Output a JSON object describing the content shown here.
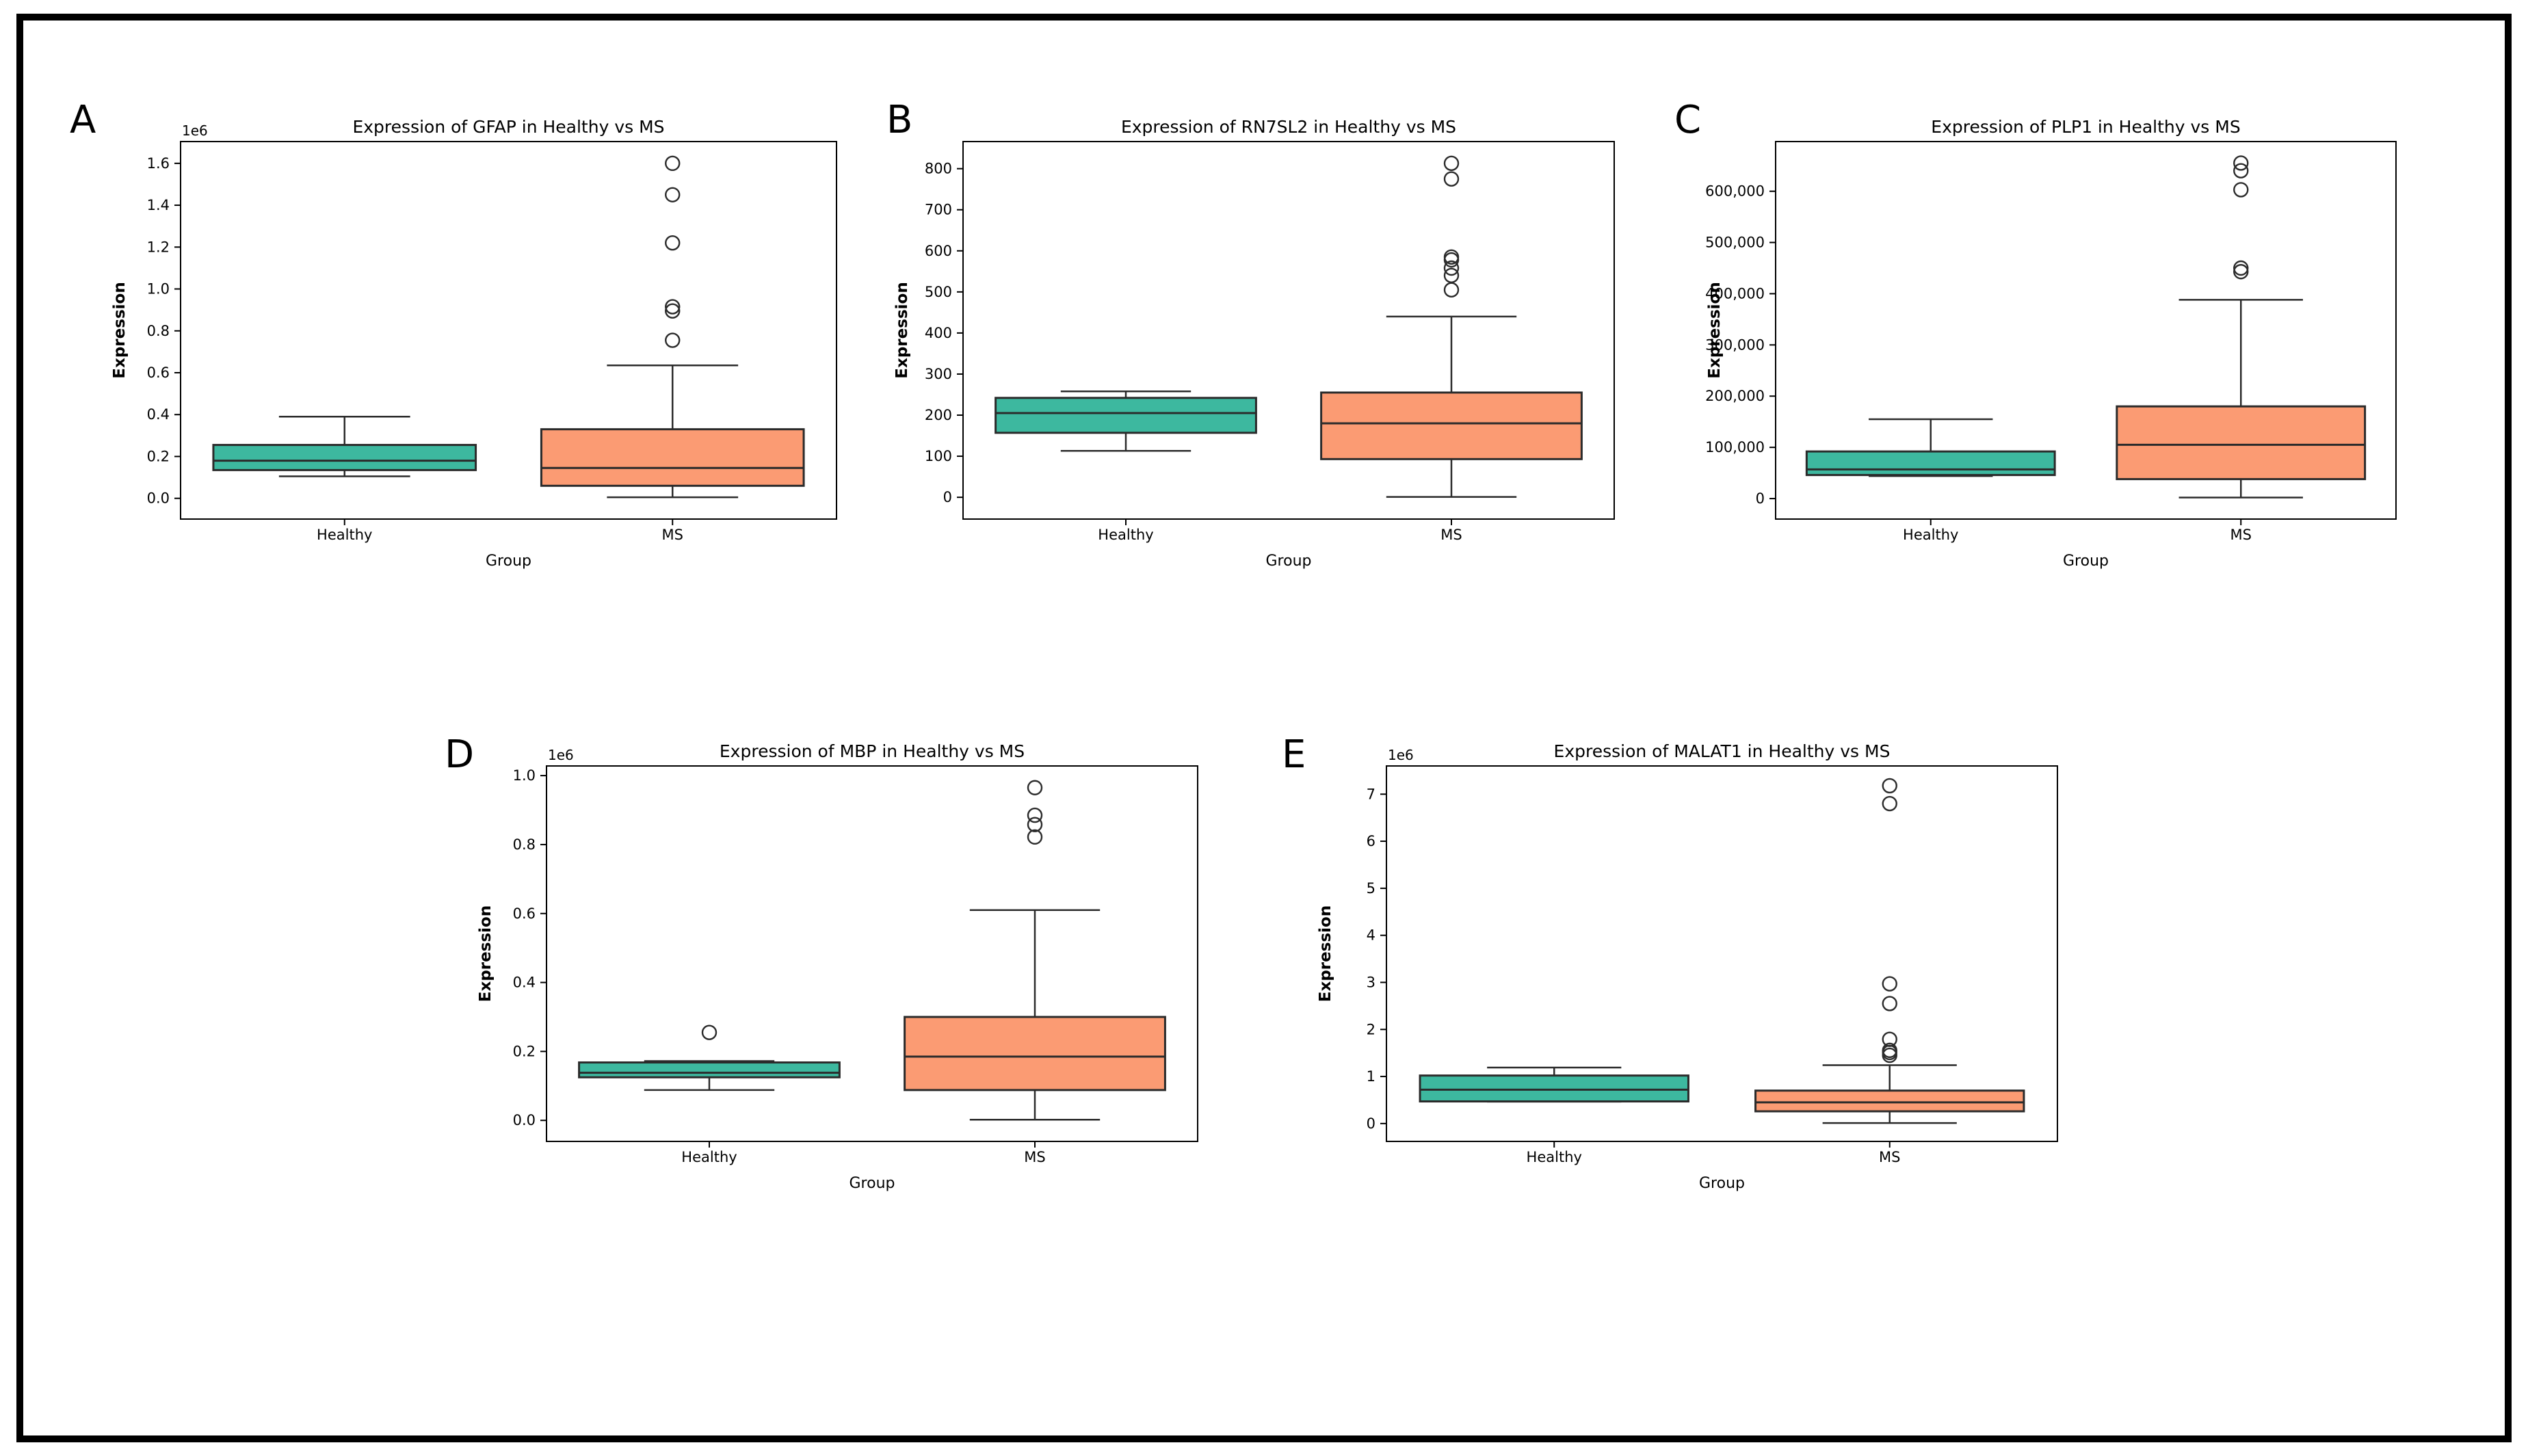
{
  "page": {
    "background": "#ffffff",
    "frame_color": "#000000"
  },
  "panel_labels": [
    "A",
    "B",
    "C",
    "D",
    "E"
  ],
  "colors": {
    "healthy_box": "#3db89f",
    "ms_box": "#fb9b73",
    "box_edge": "#2b2b2b",
    "spine": "#000000"
  },
  "chart_data": [
    {
      "type": "box",
      "panel_label": "A",
      "gene": "GFAP",
      "title": "Expression of GFAP in Healthy vs MS",
      "xlabel": "Group",
      "ylabel": "Expression",
      "y_offset_text": "1e6",
      "categories": [
        "Healthy",
        "MS"
      ],
      "ylim": [
        -99000,
        1704000
      ],
      "yticks": [
        {
          "v": 0,
          "label": "0.0"
        },
        {
          "v": 200000,
          "label": "0.2"
        },
        {
          "v": 400000,
          "label": "0.4"
        },
        {
          "v": 600000,
          "label": "0.6"
        },
        {
          "v": 800000,
          "label": "0.8"
        },
        {
          "v": 1000000,
          "label": "1.0"
        },
        {
          "v": 1200000,
          "label": "1.2"
        },
        {
          "v": 1400000,
          "label": "1.4"
        },
        {
          "v": 1600000,
          "label": "1.6"
        }
      ],
      "series": [
        {
          "name": "Healthy",
          "color": "#3db89f",
          "whislo": 105000,
          "q1": 135000,
          "med": 180000,
          "q3": 255000,
          "whishi": 390000,
          "outliers": []
        },
        {
          "name": "MS",
          "color": "#fb9b73",
          "whislo": 5000,
          "q1": 60000,
          "med": 145000,
          "q3": 330000,
          "whishi": 635000,
          "outliers": [
            755000,
            895000,
            915000,
            1220000,
            1450000,
            1600000
          ]
        }
      ]
    },
    {
      "type": "box",
      "panel_label": "B",
      "gene": "RN7SL2",
      "title": "Expression of RN7SL2 in Healthy vs MS",
      "xlabel": "Group",
      "ylabel": "Expression",
      "y_offset_text": "",
      "categories": [
        "Healthy",
        "MS"
      ],
      "ylim": [
        -53,
        866
      ],
      "yticks": [
        {
          "v": 0,
          "label": "0"
        },
        {
          "v": 100,
          "label": "100"
        },
        {
          "v": 200,
          "label": "200"
        },
        {
          "v": 300,
          "label": "300"
        },
        {
          "v": 400,
          "label": "400"
        },
        {
          "v": 500,
          "label": "500"
        },
        {
          "v": 600,
          "label": "600"
        },
        {
          "v": 700,
          "label": "700"
        },
        {
          "v": 800,
          "label": "800"
        }
      ],
      "series": [
        {
          "name": "Healthy",
          "color": "#3db89f",
          "whislo": 113,
          "q1": 157,
          "med": 205,
          "q3": 242,
          "whishi": 258,
          "outliers": []
        },
        {
          "name": "MS",
          "color": "#fb9b73",
          "whislo": 1,
          "q1": 93,
          "med": 180,
          "q3": 255,
          "whishi": 440,
          "outliers": [
            505,
            540,
            558,
            578,
            585,
            775,
            813
          ]
        }
      ]
    },
    {
      "type": "box",
      "panel_label": "C",
      "gene": "PLP1",
      "title": "Expression of PLP1 in Healthy vs MS",
      "xlabel": "Group",
      "ylabel": "Expression",
      "y_offset_text": "",
      "categories": [
        "Healthy",
        "MS"
      ],
      "ylim": [
        -40000,
        697000
      ],
      "yticks": [
        {
          "v": 0,
          "label": "0"
        },
        {
          "v": 100000,
          "label": "100,000"
        },
        {
          "v": 200000,
          "label": "200,000"
        },
        {
          "v": 300000,
          "label": "300,000"
        },
        {
          "v": 400000,
          "label": "400,000"
        },
        {
          "v": 500000,
          "label": "500,000"
        },
        {
          "v": 600000,
          "label": "600,000"
        }
      ],
      "series": [
        {
          "name": "Healthy",
          "color": "#3db89f",
          "whislo": 44000,
          "q1": 46000,
          "med": 57000,
          "q3": 92000,
          "whishi": 155000,
          "outliers": []
        },
        {
          "name": "MS",
          "color": "#fb9b73",
          "whislo": 2000,
          "q1": 38000,
          "med": 105000,
          "q3": 180000,
          "whishi": 388000,
          "outliers": [
            443000,
            450000,
            603000,
            640000,
            655000
          ]
        }
      ]
    },
    {
      "type": "box",
      "panel_label": "D",
      "gene": "MBP",
      "title": "Expression of MBP in Healthy vs MS",
      "xlabel": "Group",
      "ylabel": "Expression",
      "y_offset_text": "1e6",
      "categories": [
        "Healthy",
        "MS"
      ],
      "ylim": [
        -61000,
        1028000
      ],
      "yticks": [
        {
          "v": 0,
          "label": "0.0"
        },
        {
          "v": 200000,
          "label": "0.2"
        },
        {
          "v": 400000,
          "label": "0.4"
        },
        {
          "v": 600000,
          "label": "0.6"
        },
        {
          "v": 800000,
          "label": "0.8"
        },
        {
          "v": 1000000,
          "label": "1.0"
        }
      ],
      "series": [
        {
          "name": "Healthy",
          "color": "#3db89f",
          "whislo": 88000,
          "q1": 125000,
          "med": 138000,
          "q3": 168000,
          "whishi": 172000,
          "outliers": [
            255000
          ]
        },
        {
          "name": "MS",
          "color": "#fb9b73",
          "whislo": 2000,
          "q1": 88000,
          "med": 185000,
          "q3": 300000,
          "whishi": 610000,
          "outliers": [
            822000,
            858000,
            885000,
            965000
          ]
        }
      ]
    },
    {
      "type": "box",
      "panel_label": "E",
      "gene": "MALAT1",
      "title": "Expression of MALAT1 in Healthy vs MS",
      "xlabel": "Group",
      "ylabel": "Expression",
      "y_offset_text": "1e6",
      "categories": [
        "Healthy",
        "MS"
      ],
      "ylim": [
        -380000,
        7600000
      ],
      "yticks": [
        {
          "v": 0,
          "label": "0"
        },
        {
          "v": 1000000,
          "label": "1"
        },
        {
          "v": 2000000,
          "label": "2"
        },
        {
          "v": 3000000,
          "label": "3"
        },
        {
          "v": 4000000,
          "label": "4"
        },
        {
          "v": 5000000,
          "label": "5"
        },
        {
          "v": 6000000,
          "label": "6"
        },
        {
          "v": 7000000,
          "label": "7"
        }
      ],
      "series": [
        {
          "name": "Healthy",
          "color": "#3db89f",
          "whislo": 465000,
          "q1": 470000,
          "med": 720000,
          "q3": 1020000,
          "whishi": 1190000,
          "outliers": []
        },
        {
          "name": "MS",
          "color": "#fb9b73",
          "whislo": 10000,
          "q1": 260000,
          "med": 450000,
          "q3": 700000,
          "whishi": 1240000,
          "outliers": [
            1450000,
            1510000,
            1555000,
            1790000,
            2550000,
            2970000,
            6800000,
            7180000
          ]
        }
      ]
    }
  ]
}
